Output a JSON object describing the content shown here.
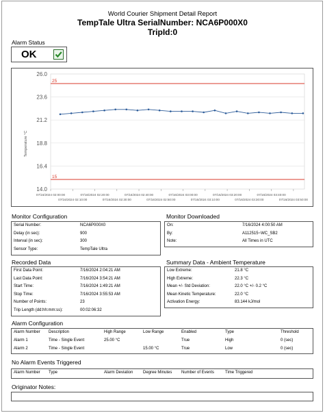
{
  "report": {
    "title": "World Courier Shipment Detail Report",
    "subtitle": "TempTale Ultra SerialNumber: NCA6P000X0",
    "trip": "TripId:0"
  },
  "alarm_status": {
    "label": "Alarm Status",
    "value": "OK",
    "icon": "checkbox-checked-icon"
  },
  "colors": {
    "line": "#2e5d9a",
    "limit": "#d93a2b",
    "grid": "#e2e2e2",
    "check": "#2a8a2a"
  },
  "chart_data": {
    "type": "line",
    "ylabel": "Temperature °C",
    "ylim": [
      14.0,
      26.0
    ],
    "yticks": [
      "26.0",
      "23.6",
      "21.2",
      "18.8",
      "16.4",
      "14.0"
    ],
    "upper_limit": 25,
    "lower_limit": 15,
    "upper_limit_label": "25",
    "lower_limit_label": "15",
    "xticks_row1": [
      "07/16/2024 02:00:00",
      "07/16/2024 02:20:00",
      "07/16/2024 02:40:00",
      "07/16/2024 03:00:00",
      "07/16/2024 03:20:00",
      "07/16/2024 03:40:00"
    ],
    "xticks_row2": [
      "07/16/2024 02:10:00",
      "07/16/2024 02:30:00",
      "07/16/2024 02:50:00",
      "07/16/2024 03:10:00",
      "07/16/2024 03:30:00",
      "07/16/2024 03:50:00"
    ],
    "xlim_minutes": [
      0,
      115
    ],
    "series": [
      {
        "x": [
          4.35,
          14.35,
          24.35,
          34.35,
          44.35,
          54.35,
          64.35,
          74.35,
          84.35,
          94.35,
          104.35,
          114.35
        ],
        "values": [
          21.8,
          22.0,
          22.2,
          22.3,
          22.3,
          22.1,
          22.1,
          22.2,
          22.1,
          22.0,
          22.0,
          21.9
        ]
      },
      {
        "x": [
          9.35,
          19.35,
          29.35,
          39.35,
          49.35,
          59.35,
          69.35,
          79.35,
          89.35,
          99.35,
          109.35
        ],
        "values": [
          21.9,
          22.1,
          22.3,
          22.2,
          22.2,
          22.1,
          22.0,
          21.9,
          21.9,
          21.9,
          21.9
        ]
      }
    ]
  },
  "monitor_config": {
    "title": "Monitor Configuration",
    "rows": [
      {
        "label": "Serial Number:",
        "value": "NCA6P000X0"
      },
      {
        "label": "Delay (in sec):",
        "value": "900"
      },
      {
        "label": "Interval (in sec):",
        "value": "300"
      },
      {
        "label": "Sensor Type:",
        "value": "TempTale Ultra"
      }
    ]
  },
  "monitor_downloaded": {
    "title": "Monitor Downloaded",
    "rows": [
      {
        "label": "On:",
        "value": "7/16/2024 4:00:50 AM"
      },
      {
        "label": "By:",
        "value": "A112515~WC_SB2"
      },
      {
        "label": "Note:",
        "value": "All Times in UTC"
      }
    ]
  },
  "recorded_data": {
    "title": "Recorded Data",
    "rows": [
      {
        "label": "First Data Point:",
        "value": "7/16/2024 2:04:21 AM"
      },
      {
        "label": "Last Data Point:",
        "value": "7/16/2024 3:54:21 AM"
      },
      {
        "label": "Start Time:",
        "value": "7/16/2024 1:49:21 AM"
      },
      {
        "label": "Stop Time:",
        "value": "7/16/2024 3:55:53 AM"
      },
      {
        "label": "Number of Points:",
        "value": "23"
      },
      {
        "label": "Trip Length (dd:hh:mm:ss):",
        "value": "00:02:06:32"
      }
    ]
  },
  "summary": {
    "title": "Summary Data - Ambient Temperature",
    "rows": [
      {
        "label": "Low Extreme:",
        "value": "21.8 °C"
      },
      {
        "label": "High Extreme:",
        "value": "22.3 °C"
      },
      {
        "label": "Mean +/- Std Deviation:",
        "value": "22.0 °C +/- 0.2 °C"
      },
      {
        "label": "Mean Kinetic Temperature:",
        "value": "22.0 °C"
      },
      {
        "label": "Activation Energy:",
        "value": "83.144 kJ/mol"
      }
    ]
  },
  "alarm_config": {
    "title": "Alarm Configuration",
    "headers": [
      "Alarm Number",
      "Description",
      "High Range",
      "Low Range",
      "Enabled",
      "Type",
      "Threshold"
    ],
    "rows": [
      [
        "Alarm 1",
        "Time - Single Event",
        "25.00 °C",
        "",
        "True",
        "High",
        "0  (sec)"
      ],
      [
        "Alarm 2",
        "Time - Single Event",
        "",
        "15.00 °C",
        "True",
        "Low",
        "0  (sec)"
      ]
    ]
  },
  "no_alarm_events": {
    "title": "No Alarm Events Triggered",
    "headers": [
      "Alarm Number",
      "Type",
      "Alarm Deviation",
      "Degree Minutes",
      "Number of Events",
      "Time Triggered"
    ]
  },
  "originator": {
    "title": "Originator Notes:"
  }
}
